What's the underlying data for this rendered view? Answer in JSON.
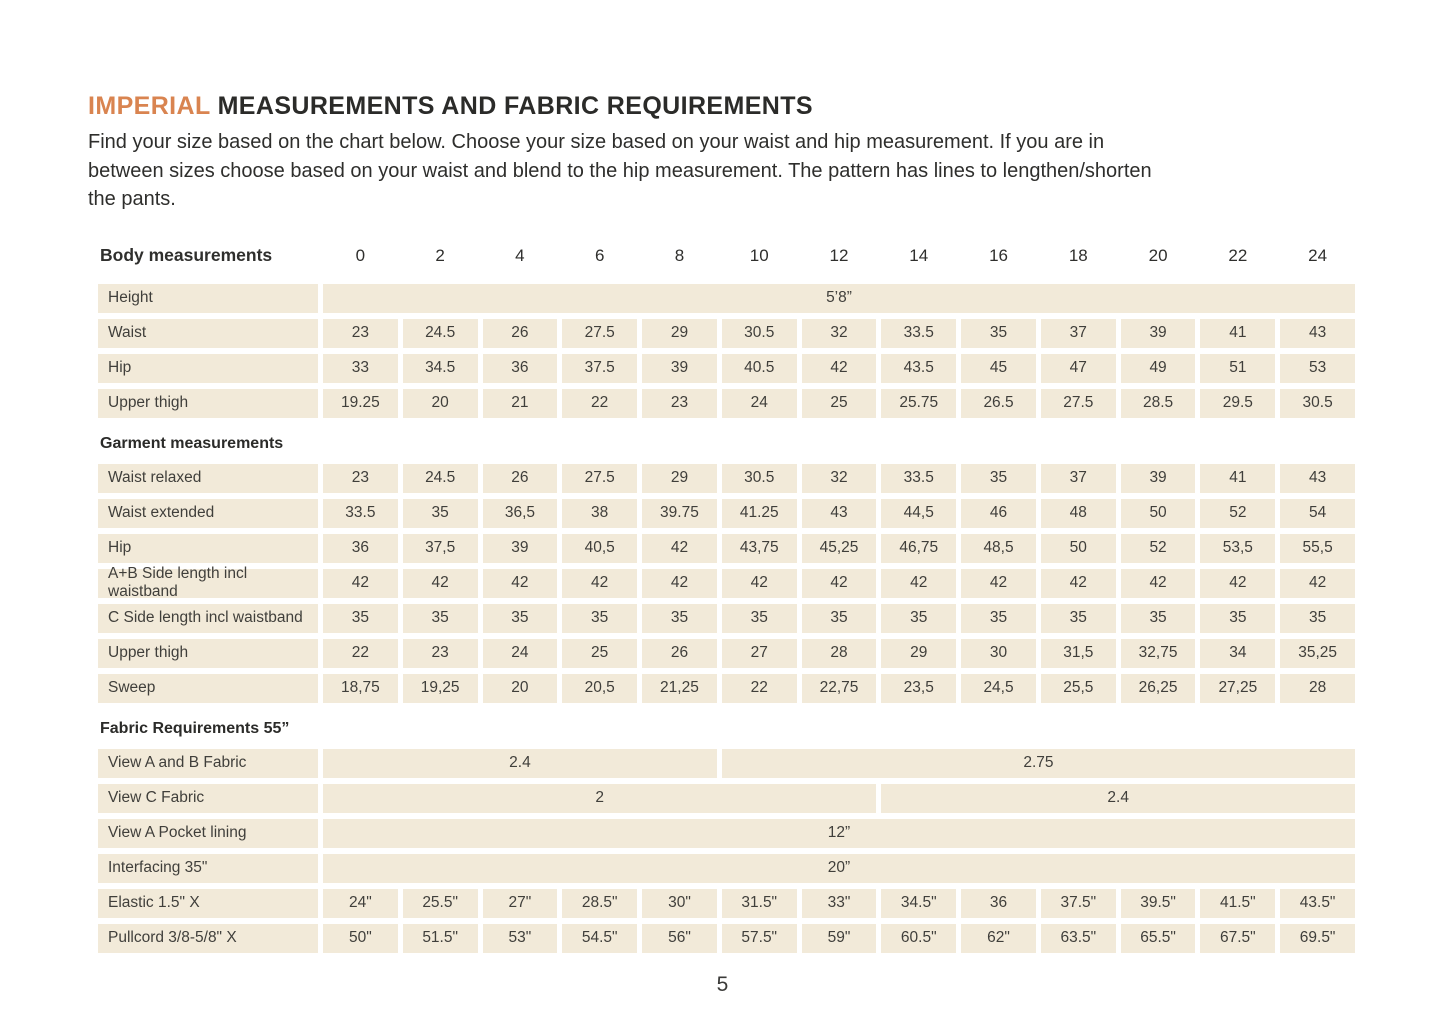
{
  "theme": {
    "accent_color": "#d98450",
    "cell_background": "#f2ead9",
    "text_color": "#2d2d2b"
  },
  "header": {
    "title_highlight": "IMPERIAL",
    "title_rest": "MEASUREMENTS AND FABRIC REQUIREMENTS",
    "intro": "Find your size based on the chart below. Choose your size based on your waist and hip measurement. If you are in\nbetween sizes choose based on your waist and blend to the hip measurement. The pattern has lines to lengthen/shorten\nthe pants."
  },
  "table": {
    "header": {
      "label": "Body measurements",
      "sizes": [
        "0",
        "2",
        "4",
        "6",
        "8",
        "10",
        "12",
        "14",
        "16",
        "18",
        "20",
        "22",
        "24"
      ]
    },
    "groups": [
      {
        "title": "",
        "rows": [
          {
            "label": "Height",
            "spans": [
              {
                "text": "5’8”",
                "cols": 13
              }
            ]
          },
          {
            "label": "Waist",
            "cells": [
              "23",
              "24.5",
              "26",
              "27.5",
              "29",
              "30.5",
              "32",
              "33.5",
              "35",
              "37",
              "39",
              "41",
              "43"
            ]
          },
          {
            "label": "Hip",
            "cells": [
              "33",
              "34.5",
              "36",
              "37.5",
              "39",
              "40.5",
              "42",
              "43.5",
              "45",
              "47",
              "49",
              "51",
              "53"
            ]
          },
          {
            "label": "Upper thigh",
            "cells": [
              "19.25",
              "20",
              "21",
              "22",
              "23",
              "24",
              "25",
              "25.75",
              "26.5",
              "27.5",
              "28.5",
              "29.5",
              "30.5"
            ]
          }
        ]
      },
      {
        "title": "Garment measurements",
        "rows": [
          {
            "label": "Waist relaxed",
            "cells": [
              "23",
              "24.5",
              "26",
              "27.5",
              "29",
              "30.5",
              "32",
              "33.5",
              "35",
              "37",
              "39",
              "41",
              "43"
            ]
          },
          {
            "label": "Waist extended",
            "cells": [
              "33.5",
              "35",
              "36,5",
              "38",
              "39.75",
              "41.25",
              "43",
              "44,5",
              "46",
              "48",
              "50",
              "52",
              "54"
            ]
          },
          {
            "label": "Hip",
            "cells": [
              "36",
              "37,5",
              "39",
              "40,5",
              "42",
              "43,75",
              "45,25",
              "46,75",
              "48,5",
              "50",
              "52",
              "53,5",
              "55,5"
            ]
          },
          {
            "label": "A+B Side length incl waistband",
            "cells": [
              "42",
              "42",
              "42",
              "42",
              "42",
              "42",
              "42",
              "42",
              "42",
              "42",
              "42",
              "42",
              "42"
            ]
          },
          {
            "label": "C Side length incl waistband",
            "cells": [
              "35",
              "35",
              "35",
              "35",
              "35",
              "35",
              "35",
              "35",
              "35",
              "35",
              "35",
              "35",
              "35"
            ]
          },
          {
            "label": "Upper thigh",
            "cells": [
              "22",
              "23",
              "24",
              "25",
              "26",
              "27",
              "28",
              "29",
              "30",
              "31,5",
              "32,75",
              "34",
              "35,25"
            ]
          },
          {
            "label": "Sweep",
            "cells": [
              "18,75",
              "19,25",
              "20",
              "20,5",
              "21,25",
              "22",
              "22,75",
              "23,5",
              "24,5",
              "25,5",
              "26,25",
              "27,25",
              "28"
            ]
          }
        ]
      },
      {
        "title": "Fabric Requirements 55”",
        "rows": [
          {
            "label": "View A  and B Fabric",
            "spans": [
              {
                "text": "2.4",
                "cols": 5
              },
              {
                "text": "2.75",
                "cols": 8
              }
            ]
          },
          {
            "label": "View C Fabric",
            "spans": [
              {
                "text": "2",
                "cols": 7
              },
              {
                "text": "2.4",
                "cols": 6
              }
            ]
          },
          {
            "label": "View A Pocket lining",
            "spans": [
              {
                "text": "12”",
                "cols": 13
              }
            ]
          },
          {
            "label": "Interfacing 35\"",
            "spans": [
              {
                "text": "20”",
                "cols": 13
              }
            ]
          },
          {
            "label": "Elastic  1.5\" X",
            "cells": [
              "24\"",
              "25.5\"",
              "27\"",
              "28.5\"",
              "30\"",
              "31.5\"",
              "33\"",
              "34.5\"",
              "36",
              "37.5\"",
              "39.5\"",
              "41.5\"",
              "43.5\""
            ]
          },
          {
            "label": "Pullcord 3/8-5/8\" X",
            "cells": [
              "50\"",
              "51.5\"",
              "53\"",
              "54.5\"",
              "56\"",
              "57.5\"",
              "59\"",
              "60.5\"",
              "62\"",
              "63.5\"",
              "65.5\"",
              "67.5\"",
              "69.5\""
            ]
          }
        ]
      }
    ]
  },
  "footer": {
    "page_number": "5"
  }
}
